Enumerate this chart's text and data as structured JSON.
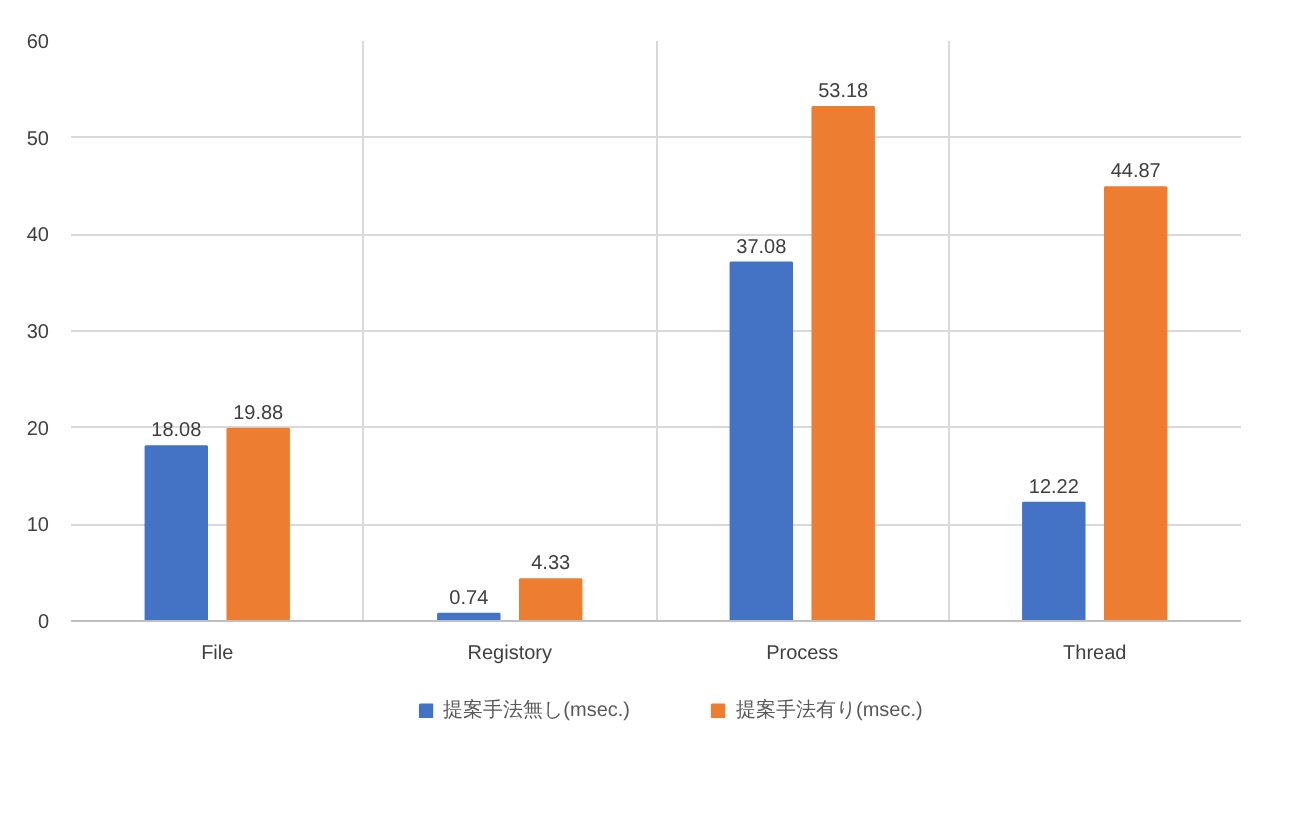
{
  "chart_data": {
    "type": "bar",
    "categories": [
      "File",
      "Registory",
      "Process",
      "Thread"
    ],
    "series": [
      {
        "name": "提案手法無し(msec.)",
        "color": "#4472c4",
        "values": [
          18.08,
          0.74,
          37.08,
          12.22
        ]
      },
      {
        "name": "提案手法有り(msec.)",
        "color": "#ed7d31",
        "values": [
          19.88,
          4.33,
          53.18,
          44.87
        ]
      }
    ],
    "ylim": [
      0,
      60
    ],
    "yticks": [
      0,
      10,
      20,
      30,
      40,
      50,
      60
    ],
    "grid": true,
    "legend": "bottom",
    "data_labels": true
  }
}
